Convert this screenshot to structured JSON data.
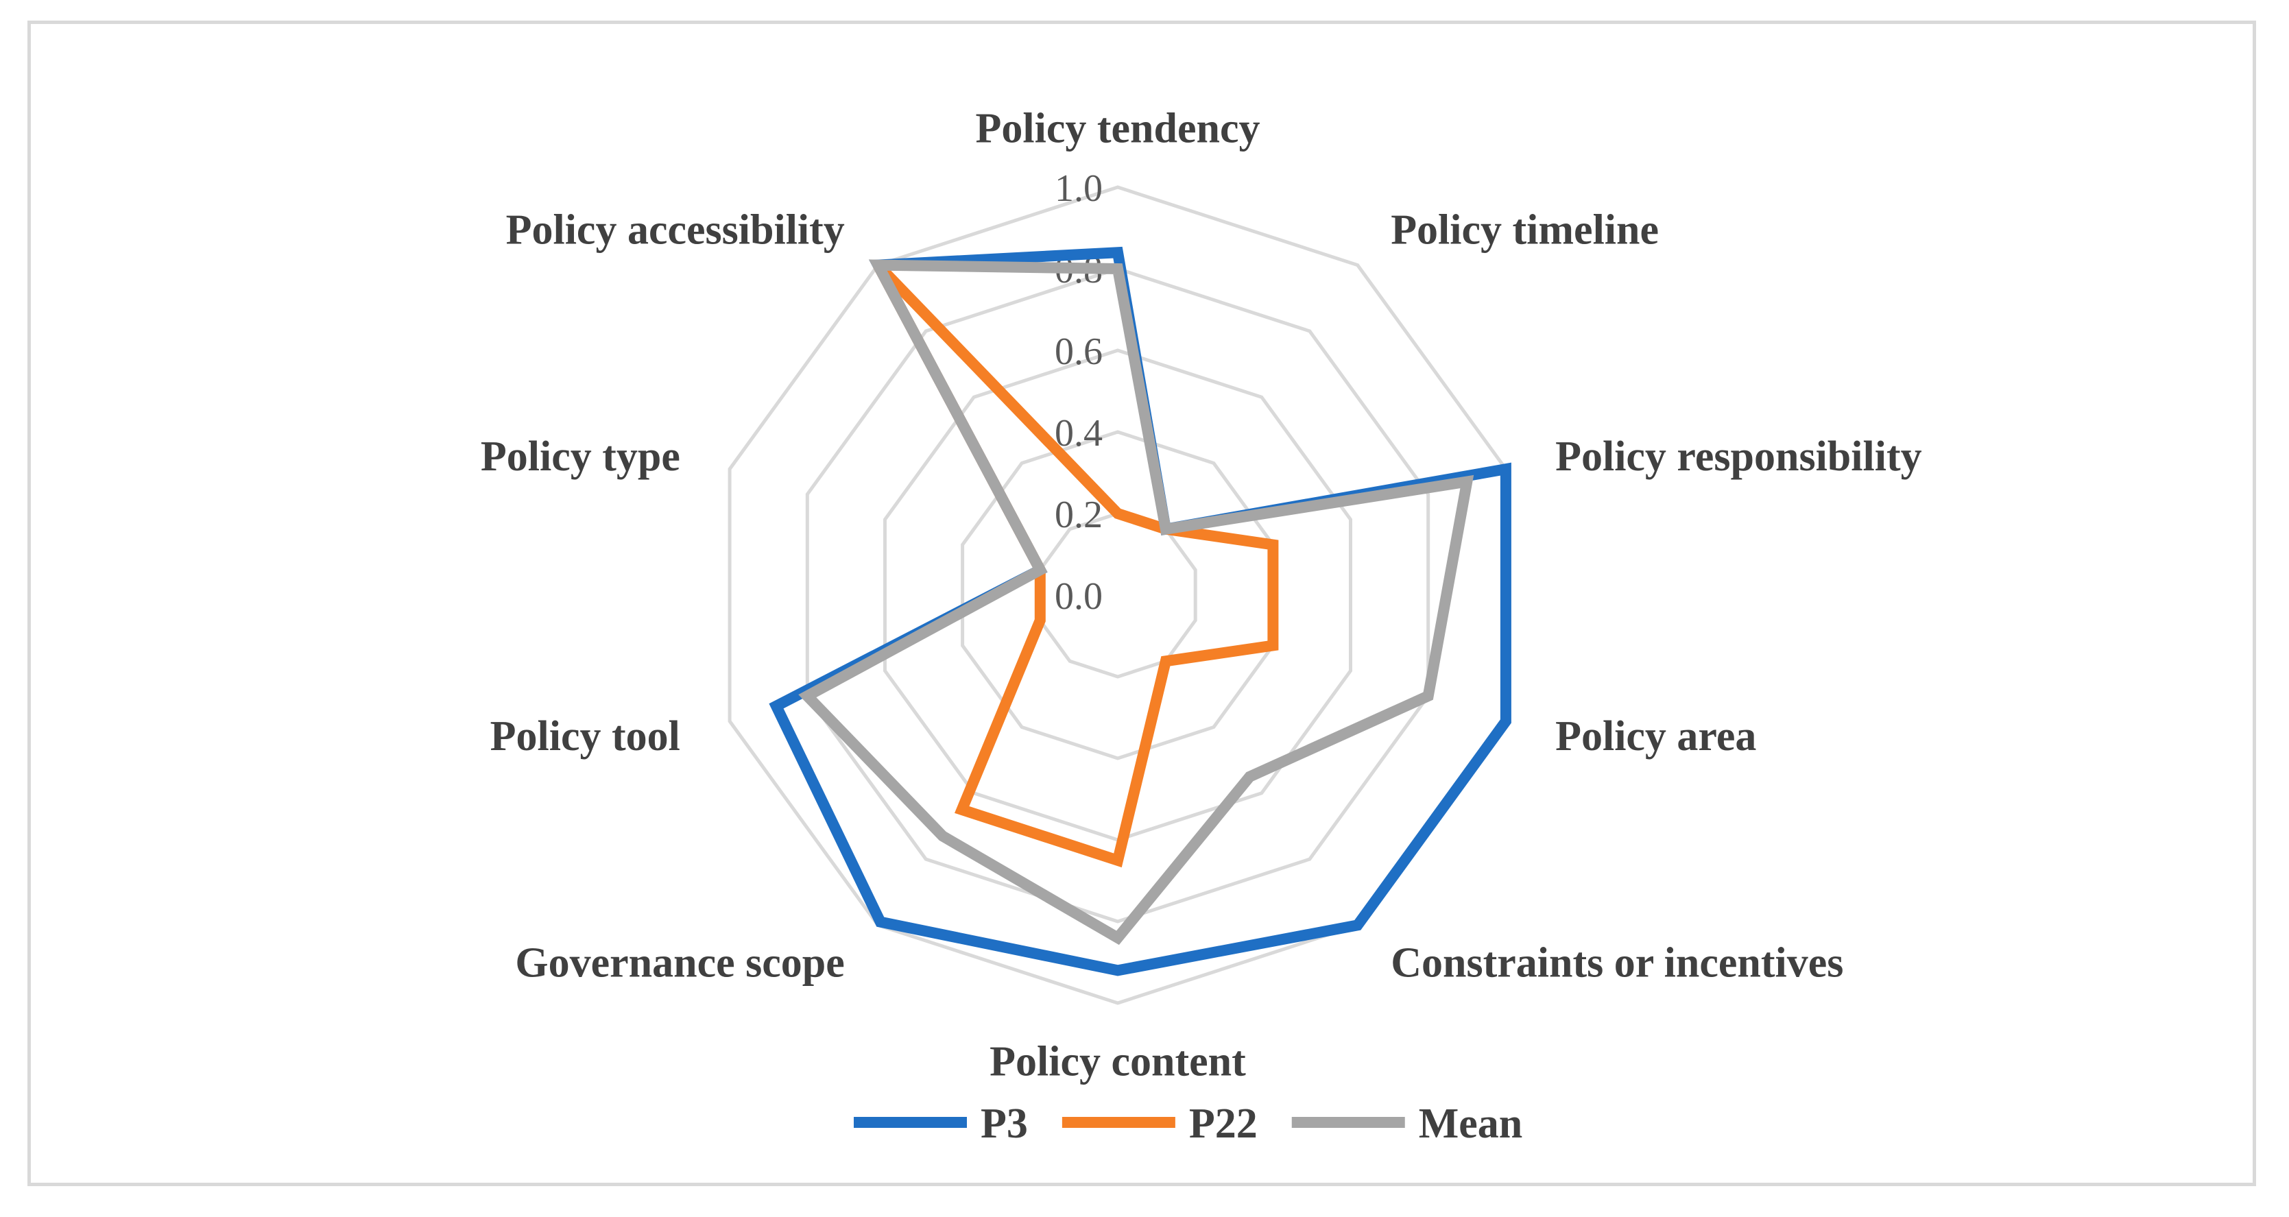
{
  "chart_data": {
    "type": "radar",
    "title": "",
    "axes": [
      "Policy tendency",
      "Policy timeline",
      "Policy responsibility",
      "Policy area",
      "Constraints or incentives",
      "Policy content",
      "Governance scope",
      "Policy tool",
      "Policy type",
      "Policy accessibility"
    ],
    "rlim": [
      0,
      1
    ],
    "ticks": [
      "0.0",
      "0.2",
      "0.4",
      "0.6",
      "0.8",
      "1.0"
    ],
    "tick_values": [
      0,
      0.2,
      0.4,
      0.6,
      0.8,
      1.0
    ],
    "grid": true,
    "legend_position": "bottom",
    "series": [
      {
        "name": "P3",
        "color": "#1f6fc4",
        "values": [
          0.84,
          0.2,
          1.0,
          1.0,
          1.0,
          0.92,
          0.99,
          0.88,
          0.2,
          1.0
        ]
      },
      {
        "name": "P22",
        "color": "#f57f25",
        "values": [
          0.2,
          0.2,
          0.4,
          0.4,
          0.2,
          0.65,
          0.65,
          0.2,
          0.2,
          1.0
        ]
      },
      {
        "name": "Mean",
        "color": "#a5a5a5",
        "values": [
          0.8,
          0.2,
          0.9,
          0.8,
          0.55,
          0.84,
          0.73,
          0.8,
          0.2,
          1.0
        ]
      }
    ]
  }
}
